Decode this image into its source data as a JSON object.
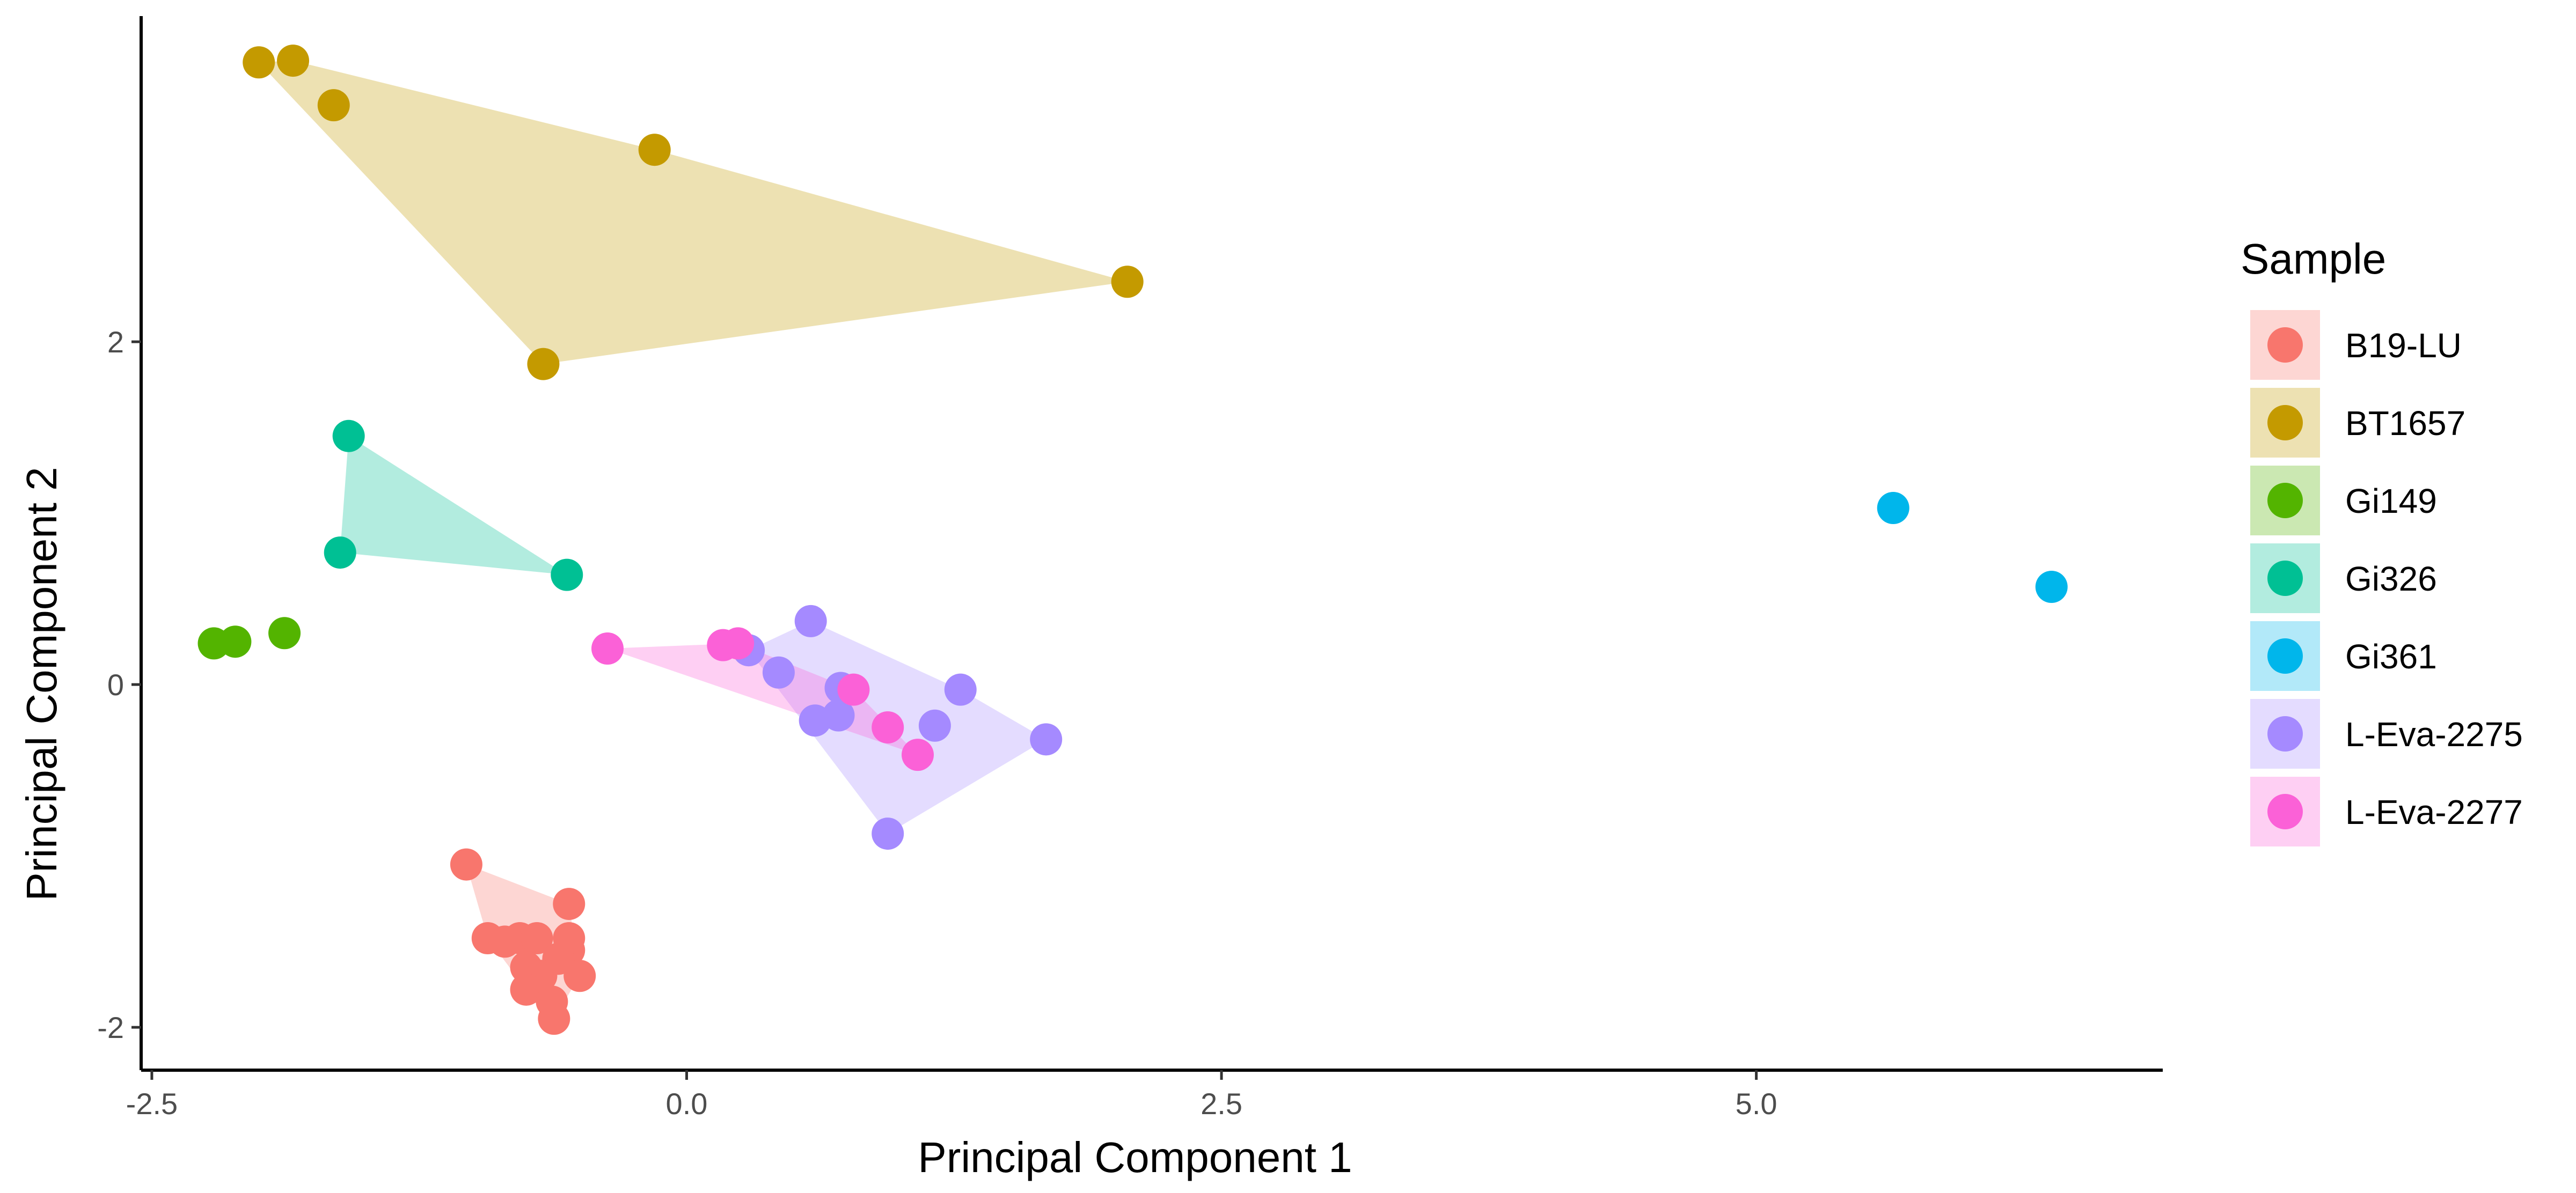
{
  "chart_data": {
    "type": "scatter",
    "title": "",
    "xlabel": "Principal Component 1",
    "ylabel": "Principal Component 2",
    "xlim": [
      -2.55,
      6.9
    ],
    "ylim": [
      -2.25,
      3.9
    ],
    "x_ticks": [
      {
        "value": -2.5,
        "label": "-2.5"
      },
      {
        "value": 0.0,
        "label": "0.0"
      },
      {
        "value": 2.5,
        "label": "2.5"
      },
      {
        "value": 5.0,
        "label": "5.0"
      }
    ],
    "y_ticks": [
      {
        "value": -2,
        "label": "-2"
      },
      {
        "value": 0,
        "label": "0"
      },
      {
        "value": 2,
        "label": "2"
      }
    ],
    "grid": false,
    "legend": {
      "title": "Sample",
      "position": "right"
    },
    "series": [
      {
        "name": "B19-LU",
        "color": "#F8766D",
        "hull": true,
        "points": [
          [
            -1.03,
            -1.05
          ],
          [
            -0.93,
            -1.48
          ],
          [
            -0.85,
            -1.5
          ],
          [
            -0.78,
            -1.48
          ],
          [
            -0.7,
            -1.48
          ],
          [
            -0.55,
            -1.28
          ],
          [
            -0.55,
            -1.48
          ],
          [
            -0.55,
            -1.55
          ],
          [
            -0.6,
            -1.6
          ],
          [
            -0.75,
            -1.65
          ],
          [
            -0.68,
            -1.7
          ],
          [
            -0.5,
            -1.7
          ],
          [
            -0.75,
            -1.78
          ],
          [
            -0.63,
            -1.85
          ],
          [
            -0.62,
            -1.95
          ]
        ]
      },
      {
        "name": "BT1657",
        "color": "#C49A00",
        "hull": true,
        "points": [
          [
            -2.0,
            3.63
          ],
          [
            -1.84,
            3.64
          ],
          [
            -1.65,
            3.38
          ],
          [
            -0.15,
            3.12
          ],
          [
            2.06,
            2.35
          ],
          [
            -0.67,
            1.87
          ]
        ]
      },
      {
        "name": "Gi149",
        "color": "#53B400",
        "hull": false,
        "points": [
          [
            -2.21,
            0.24
          ],
          [
            -2.11,
            0.25
          ],
          [
            -1.88,
            0.3
          ]
        ]
      },
      {
        "name": "Gi326",
        "color": "#00C094",
        "hull": true,
        "points": [
          [
            -1.58,
            1.45
          ],
          [
            -1.62,
            0.77
          ],
          [
            -0.56,
            0.64
          ]
        ]
      },
      {
        "name": "Gi361",
        "color": "#00B6EB",
        "hull": false,
        "points": [
          [
            5.64,
            1.03
          ],
          [
            6.38,
            0.57
          ]
        ]
      },
      {
        "name": "L-Eva-2275",
        "color": "#A58AFF",
        "hull": true,
        "points": [
          [
            0.58,
            0.37
          ],
          [
            0.29,
            0.2
          ],
          [
            0.43,
            0.07
          ],
          [
            0.72,
            -0.02
          ],
          [
            1.28,
            -0.03
          ],
          [
            1.16,
            -0.24
          ],
          [
            0.6,
            -0.21
          ],
          [
            0.71,
            -0.18
          ],
          [
            1.68,
            -0.32
          ],
          [
            0.94,
            -0.87
          ]
        ]
      },
      {
        "name": "L-Eva-2277",
        "color": "#FB61D7",
        "hull": true,
        "points": [
          [
            -0.37,
            0.21
          ],
          [
            0.17,
            0.23
          ],
          [
            0.24,
            0.24
          ],
          [
            0.78,
            -0.03
          ],
          [
            0.94,
            -0.25
          ],
          [
            1.08,
            -0.41
          ]
        ]
      }
    ]
  }
}
